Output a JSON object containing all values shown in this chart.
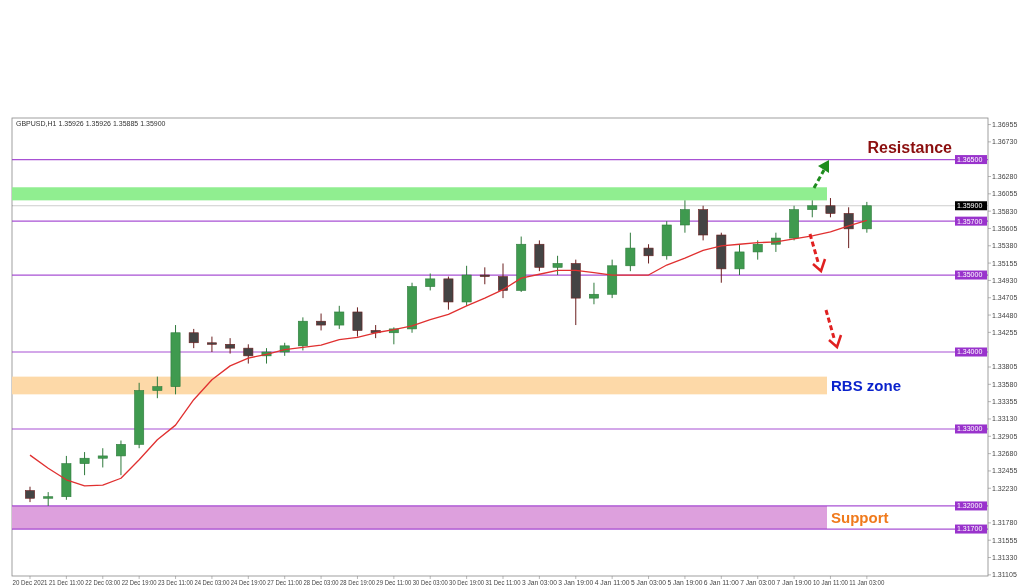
{
  "chart_data": {
    "type": "candlestick",
    "title": "GBPUSD,H1  1.35926 1.35926 1.35885 1.35900",
    "categories": [
      "20 Dec 2021",
      null,
      "21 Dec 11:00",
      null,
      "22 Dec 03:00",
      null,
      "22 Dec 19:00",
      null,
      "23 Dec 11:00",
      null,
      "24 Dec 03:00",
      null,
      "24 Dec 19:00",
      null,
      "27 Dec 11:00",
      null,
      "28 Dec 03:00",
      null,
      "28 Dec 19:00",
      null,
      "29 Dec 11:00",
      null,
      "30 Dec 03:00",
      null,
      "30 Dec 19:00",
      null,
      "31 Dec 11:00",
      null,
      "3 Jan 03:00",
      null,
      "3 Jan 19:00",
      null,
      "4 Jan 11:00",
      null,
      "5 Jan 03:00",
      null,
      "5 Jan 19:00",
      null,
      "6 Jan 11:00",
      null,
      "7 Jan 03:00",
      null,
      "7 Jan 19:00",
      null,
      "10 Jan 11:00",
      null,
      "11 Jan 03:00",
      null,
      null,
      null,
      null,
      null,
      null
    ],
    "ohlc": [
      [
        1.322,
        1.3225,
        1.3205,
        1.321
      ],
      [
        1.321,
        1.3218,
        1.32,
        1.3212
      ],
      [
        1.3212,
        1.3265,
        1.3208,
        1.3255
      ],
      [
        1.3255,
        1.327,
        1.324,
        1.3262
      ],
      [
        1.3262,
        1.3275,
        1.325,
        1.3265
      ],
      [
        1.3265,
        1.3285,
        1.324,
        1.328
      ],
      [
        1.328,
        1.336,
        1.3275,
        1.335
      ],
      [
        1.335,
        1.3368,
        1.334,
        1.3355
      ],
      [
        1.3355,
        1.3435,
        1.3345,
        1.3425
      ],
      [
        1.3425,
        1.343,
        1.3405,
        1.3412
      ],
      [
        1.3412,
        1.342,
        1.34,
        1.341
      ],
      [
        1.341,
        1.3418,
        1.3398,
        1.3405
      ],
      [
        1.3405,
        1.341,
        1.3385,
        1.3395
      ],
      [
        1.3395,
        1.3405,
        1.3385,
        1.34
      ],
      [
        1.34,
        1.3412,
        1.3395,
        1.3408
      ],
      [
        1.3408,
        1.3445,
        1.3402,
        1.344
      ],
      [
        1.344,
        1.345,
        1.3428,
        1.3435
      ],
      [
        1.3435,
        1.346,
        1.343,
        1.3452
      ],
      [
        1.3452,
        1.3458,
        1.342,
        1.3428
      ],
      [
        1.3428,
        1.3435,
        1.3418,
        1.3425
      ],
      [
        1.3425,
        1.3432,
        1.341,
        1.343
      ],
      [
        1.343,
        1.349,
        1.3425,
        1.3485
      ],
      [
        1.3485,
        1.3502,
        1.348,
        1.3495
      ],
      [
        1.3495,
        1.3498,
        1.3455,
        1.3465
      ],
      [
        1.3465,
        1.3512,
        1.346,
        1.35
      ],
      [
        1.35,
        1.351,
        1.3488,
        1.3498
      ],
      [
        1.3498,
        1.3515,
        1.347,
        1.348
      ],
      [
        1.348,
        1.355,
        1.3478,
        1.354
      ],
      [
        1.354,
        1.3545,
        1.3505,
        1.351
      ],
      [
        1.351,
        1.3525,
        1.35,
        1.3515
      ],
      [
        1.3515,
        1.352,
        1.3435,
        1.347
      ],
      [
        1.347,
        1.349,
        1.3462,
        1.3475
      ],
      [
        1.3475,
        1.352,
        1.347,
        1.3512
      ],
      [
        1.3512,
        1.3555,
        1.3505,
        1.3535
      ],
      [
        1.3535,
        1.354,
        1.3515,
        1.3525
      ],
      [
        1.3525,
        1.357,
        1.352,
        1.3565
      ],
      [
        1.3565,
        1.3597,
        1.3555,
        1.3585
      ],
      [
        1.3585,
        1.359,
        1.3545,
        1.3552
      ],
      [
        1.3552,
        1.3555,
        1.349,
        1.3508
      ],
      [
        1.3508,
        1.354,
        1.35,
        1.353
      ],
      [
        1.353,
        1.3545,
        1.352,
        1.354
      ],
      [
        1.354,
        1.3555,
        1.353,
        1.3548
      ],
      [
        1.3548,
        1.359,
        1.3545,
        1.3585
      ],
      [
        1.3585,
        1.3597,
        1.3575,
        1.359
      ],
      [
        1.359,
        1.36,
        1.3575,
        1.358
      ],
      [
        1.358,
        1.3588,
        1.3535,
        1.356
      ],
      [
        1.356,
        1.3595,
        1.3555,
        1.359
      ],
      null,
      null,
      null,
      null,
      null,
      null
    ],
    "series": [
      {
        "type": "line",
        "color": "#e03030",
        "values": [
          1.3266,
          1.3249,
          1.3234,
          1.3226,
          1.3227,
          1.3236,
          1.326,
          1.3286,
          1.3305,
          1.3338,
          1.3364,
          1.3382,
          1.3392,
          1.3397,
          1.3403,
          1.3406,
          1.3409,
          1.3416,
          1.3419,
          1.3425,
          1.3429,
          1.3434,
          1.3442,
          1.3449,
          1.346,
          1.347,
          1.3481,
          1.3496,
          1.3501,
          1.3506,
          1.3506,
          1.3503,
          1.35,
          1.35,
          1.35,
          1.3513,
          1.3522,
          1.3532,
          1.3538,
          1.354,
          1.3542,
          1.3543,
          1.3547,
          1.3551,
          1.3556,
          1.3564,
          1.3571,
          null,
          null,
          null,
          null,
          null,
          null
        ]
      }
    ],
    "ylim": [
      1.3109,
      1.3704
    ],
    "yticks": [
      {
        "value": 1.36955,
        "label": "1.36955"
      },
      {
        "value": 1.3673,
        "label": "1.36730"
      },
      {
        "value": 1.3628,
        "label": "1.36280"
      },
      {
        "value": 1.36055,
        "label": "1.36055"
      },
      {
        "value": 1.3583,
        "label": "1.35830"
      },
      {
        "value": 1.35605,
        "label": "1.35605"
      },
      {
        "value": 1.3538,
        "label": "1.35380"
      },
      {
        "value": 1.35155,
        "label": "1.35155"
      },
      {
        "value": 1.3493,
        "label": "1.34930"
      },
      {
        "value": 1.34705,
        "label": "1.34705"
      },
      {
        "value": 1.3448,
        "label": "1.34480"
      },
      {
        "value": 1.34255,
        "label": "1.34255"
      },
      {
        "value": 1.33805,
        "label": "1.33805"
      },
      {
        "value": 1.3358,
        "label": "1.33580"
      },
      {
        "value": 1.33355,
        "label": "1.33355"
      },
      {
        "value": 1.3313,
        "label": "1.33130"
      },
      {
        "value": 1.32905,
        "label": "1.32905"
      },
      {
        "value": 1.3268,
        "label": "1.32680"
      },
      {
        "value": 1.32455,
        "label": "1.32455"
      },
      {
        "value": 1.3223,
        "label": "1.32230"
      },
      {
        "value": 1.3178,
        "label": "1.31780"
      },
      {
        "value": 1.31555,
        "label": "1.31555"
      },
      {
        "value": 1.3133,
        "label": "1.31330"
      },
      {
        "value": 1.31105,
        "label": "1.31105"
      }
    ],
    "ref_lines": [
      {
        "axis": "y",
        "value": 1.365,
        "label": "1.36500",
        "color": "#9933cc"
      },
      {
        "axis": "y",
        "value": 1.359,
        "label": "1.35900",
        "color": "#000000"
      },
      {
        "axis": "y",
        "value": 1.357,
        "label": "1.35700",
        "color": "#9933cc"
      },
      {
        "axis": "y",
        "value": 1.35,
        "label": "1.35000",
        "color": "#9933cc"
      },
      {
        "axis": "y",
        "value": 1.34,
        "label": "1.34000",
        "color": "#9933cc"
      },
      {
        "axis": "y",
        "value": 1.33,
        "label": "1.33000",
        "color": "#9933cc"
      },
      {
        "axis": "y",
        "value": 1.32,
        "label": "1.32000",
        "color": "#9933cc"
      },
      {
        "axis": "y",
        "value": 1.317,
        "label": "1.31700",
        "color": "#9933cc"
      }
    ],
    "bands": [
      {
        "axis": "y",
        "from": 1.3597,
        "to": 1.3614,
        "color": "#90ee90"
      },
      {
        "axis": "y",
        "from": 1.3345,
        "to": 1.3368,
        "color": "#fdd9a8",
        "label": "RBS zone"
      },
      {
        "axis": "y",
        "from": 1.317,
        "to": 1.32,
        "color": "#dda0dd",
        "label": "Support"
      }
    ],
    "annotations": [
      "Resistance"
    ]
  }
}
